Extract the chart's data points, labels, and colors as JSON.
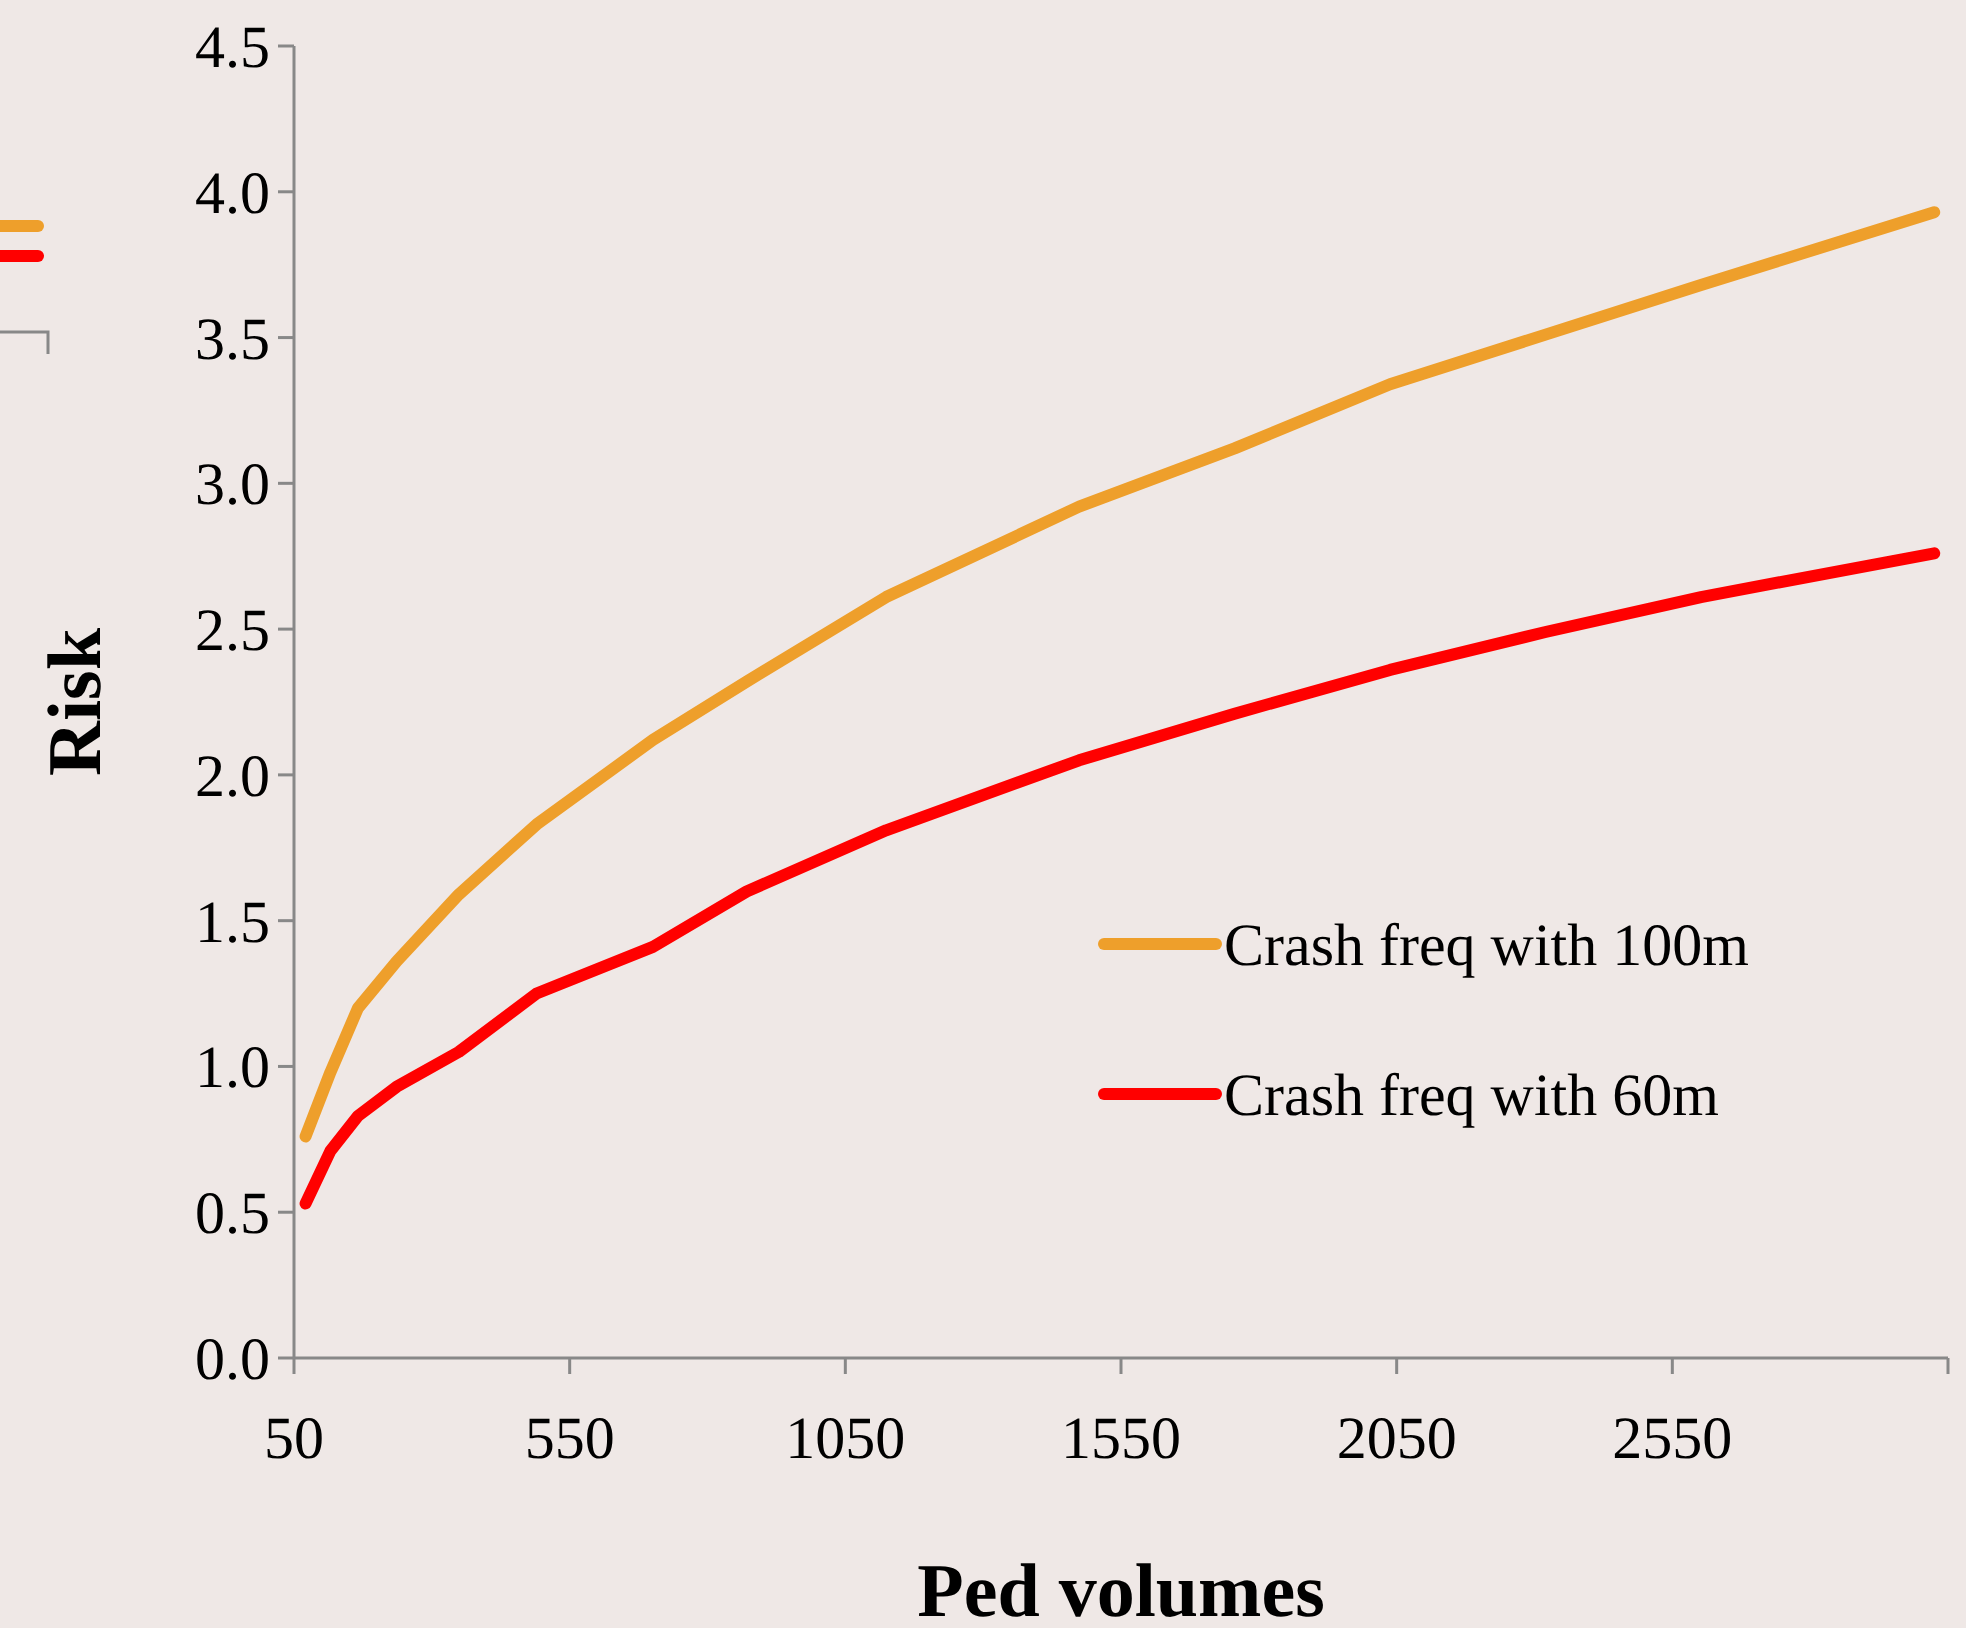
{
  "chart_data": {
    "type": "line",
    "xlabel": "Ped volumes",
    "ylabel": "Risk",
    "x": [
      71,
      116,
      166,
      236,
      349,
      490,
      701,
      871,
      1124,
      1474,
      1756,
      2038,
      2320,
      2602,
      3025
    ],
    "series": [
      {
        "name": "Crash freq with 100m",
        "color": "#ee9f2b",
        "values": [
          0.76,
          0.98,
          1.2,
          1.36,
          1.59,
          1.83,
          2.12,
          2.32,
          2.61,
          2.92,
          3.12,
          3.34,
          3.51,
          3.68,
          3.93
        ]
      },
      {
        "name": "Crash freq with 60m",
        "color": "#ff0000",
        "values": [
          0.53,
          0.71,
          0.83,
          0.93,
          1.05,
          1.25,
          1.41,
          1.6,
          1.81,
          2.05,
          2.21,
          2.36,
          2.49,
          2.61,
          2.76
        ]
      }
    ],
    "xlim": [
      50,
      3050
    ],
    "xticks": [
      50,
      550,
      1050,
      1550,
      2050,
      2550,
      {
        "value": 3050,
        "label": null
      }
    ],
    "ylim": [
      0,
      4.5
    ],
    "yticks": [
      {
        "value": 0,
        "label": "0.0"
      },
      0.5,
      {
        "value": 1,
        "label": "1.0"
      },
      1.5,
      {
        "value": 2,
        "label": "2.0"
      },
      2.5,
      {
        "value": 3,
        "label": "3.0"
      },
      3.5,
      {
        "value": 4,
        "label": "4.0"
      },
      4.5
    ],
    "grid": false,
    "legend": "right",
    "marker": "none",
    "line_style": "solid"
  }
}
